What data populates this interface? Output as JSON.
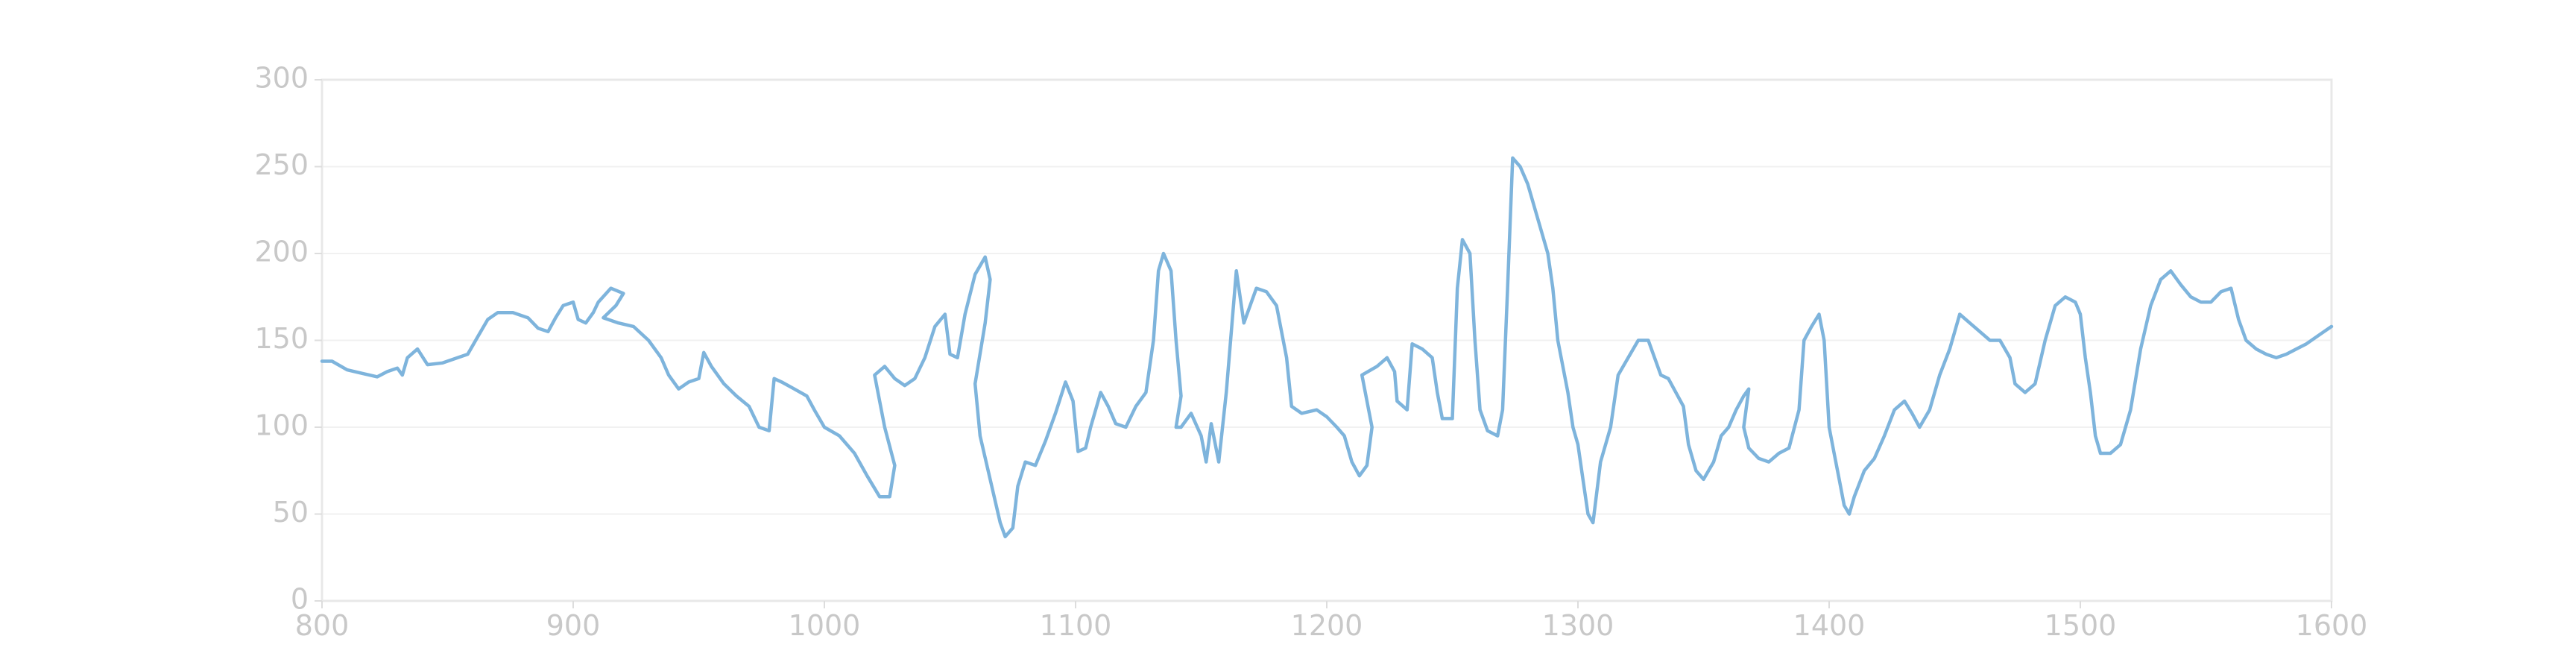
{
  "chart_data": {
    "type": "line",
    "title": "",
    "xlabel": "",
    "ylabel": "",
    "xlim": [
      800,
      1600
    ],
    "ylim": [
      0,
      300
    ],
    "x_ticks": [
      800,
      900,
      1000,
      1100,
      1200,
      1300,
      1400,
      1500,
      1600
    ],
    "y_ticks": [
      0,
      50,
      100,
      150,
      200,
      250,
      300
    ],
    "x_tick_labels": [
      "800",
      "900",
      "1000",
      "1100",
      "1200",
      "1300",
      "1400",
      "1500",
      "1600"
    ],
    "y_tick_labels": [
      "0",
      "50",
      "100",
      "150",
      "200",
      "250",
      "300"
    ],
    "grid": false,
    "legend": "none",
    "series": [
      {
        "color": "#7eb4dc",
        "points": [
          [
            800,
            138
          ],
          [
            804,
            138
          ],
          [
            810,
            133
          ],
          [
            816,
            131
          ],
          [
            822,
            129
          ],
          [
            826,
            132
          ],
          [
            830,
            134
          ],
          [
            832,
            130
          ],
          [
            834,
            140
          ],
          [
            838,
            145
          ],
          [
            842,
            136
          ],
          [
            848,
            137
          ],
          [
            854,
            140
          ],
          [
            858,
            142
          ],
          [
            862,
            152
          ],
          [
            866,
            162
          ],
          [
            870,
            166
          ],
          [
            876,
            166
          ],
          [
            882,
            163
          ],
          [
            886,
            157
          ],
          [
            890,
            155
          ],
          [
            893,
            163
          ],
          [
            896,
            170
          ],
          [
            900,
            172
          ],
          [
            902,
            162
          ],
          [
            905,
            160
          ],
          [
            908,
            166
          ],
          [
            910,
            172
          ],
          [
            915,
            180
          ],
          [
            920,
            177
          ],
          [
            917,
            170
          ],
          [
            912,
            163
          ],
          [
            918,
            160
          ],
          [
            924,
            158
          ],
          [
            930,
            150
          ],
          [
            935,
            140
          ],
          [
            938,
            130
          ],
          [
            942,
            122
          ],
          [
            946,
            126
          ],
          [
            950,
            128
          ],
          [
            952,
            143
          ],
          [
            955,
            135
          ],
          [
            960,
            125
          ],
          [
            965,
            118
          ],
          [
            970,
            112
          ],
          [
            974,
            100
          ],
          [
            978,
            98
          ],
          [
            980,
            128
          ],
          [
            983,
            126
          ],
          [
            988,
            122
          ],
          [
            993,
            118
          ],
          [
            996,
            110
          ],
          [
            1000,
            100
          ],
          [
            1006,
            95
          ],
          [
            1012,
            85
          ],
          [
            1017,
            72
          ],
          [
            1022,
            60
          ],
          [
            1026,
            60
          ],
          [
            1028,
            78
          ],
          [
            1024,
            100
          ],
          [
            1020,
            130
          ],
          [
            1024,
            135
          ],
          [
            1028,
            128
          ],
          [
            1032,
            124
          ],
          [
            1036,
            128
          ],
          [
            1040,
            140
          ],
          [
            1044,
            158
          ],
          [
            1048,
            165
          ],
          [
            1050,
            142
          ],
          [
            1053,
            140
          ],
          [
            1056,
            165
          ],
          [
            1060,
            188
          ],
          [
            1064,
            198
          ],
          [
            1066,
            185
          ],
          [
            1064,
            160
          ],
          [
            1060,
            125
          ],
          [
            1062,
            95
          ],
          [
            1066,
            70
          ],
          [
            1070,
            45
          ],
          [
            1072,
            37
          ],
          [
            1075,
            42
          ],
          [
            1077,
            66
          ],
          [
            1080,
            80
          ],
          [
            1084,
            78
          ],
          [
            1088,
            92
          ],
          [
            1092,
            108
          ],
          [
            1096,
            126
          ],
          [
            1099,
            115
          ],
          [
            1101,
            86
          ],
          [
            1104,
            88
          ],
          [
            1106,
            100
          ],
          [
            1110,
            120
          ],
          [
            1113,
            112
          ],
          [
            1116,
            102
          ],
          [
            1120,
            100
          ],
          [
            1124,
            112
          ],
          [
            1128,
            120
          ],
          [
            1131,
            150
          ],
          [
            1133,
            190
          ],
          [
            1135,
            200
          ],
          [
            1138,
            190
          ],
          [
            1140,
            150
          ],
          [
            1142,
            118
          ],
          [
            1140,
            100
          ],
          [
            1142,
            100
          ],
          [
            1146,
            108
          ],
          [
            1150,
            95
          ],
          [
            1152,
            80
          ],
          [
            1154,
            102
          ],
          [
            1157,
            80
          ],
          [
            1160,
            120
          ],
          [
            1164,
            190
          ],
          [
            1167,
            160
          ],
          [
            1172,
            180
          ],
          [
            1176,
            178
          ],
          [
            1180,
            170
          ],
          [
            1184,
            140
          ],
          [
            1186,
            112
          ],
          [
            1190,
            108
          ],
          [
            1196,
            110
          ],
          [
            1200,
            106
          ],
          [
            1204,
            100
          ],
          [
            1207,
            95
          ],
          [
            1210,
            80
          ],
          [
            1213,
            72
          ],
          [
            1216,
            78
          ],
          [
            1218,
            100
          ],
          [
            1214,
            130
          ],
          [
            1220,
            135
          ],
          [
            1224,
            140
          ],
          [
            1227,
            132
          ],
          [
            1228,
            115
          ],
          [
            1232,
            110
          ],
          [
            1234,
            148
          ],
          [
            1238,
            145
          ],
          [
            1242,
            140
          ],
          [
            1244,
            120
          ],
          [
            1246,
            105
          ],
          [
            1250,
            105
          ],
          [
            1252,
            180
          ],
          [
            1254,
            208
          ],
          [
            1257,
            200
          ],
          [
            1259,
            150
          ],
          [
            1261,
            110
          ],
          [
            1264,
            98
          ],
          [
            1268,
            95
          ],
          [
            1270,
            110
          ],
          [
            1272,
            180
          ],
          [
            1274,
            255
          ],
          [
            1277,
            250
          ],
          [
            1280,
            240
          ],
          [
            1284,
            220
          ],
          [
            1288,
            200
          ],
          [
            1290,
            180
          ],
          [
            1292,
            150
          ],
          [
            1296,
            120
          ],
          [
            1298,
            100
          ],
          [
            1300,
            90
          ],
          [
            1302,
            70
          ],
          [
            1304,
            50
          ],
          [
            1306,
            45
          ],
          [
            1309,
            80
          ],
          [
            1313,
            100
          ],
          [
            1316,
            130
          ],
          [
            1320,
            140
          ],
          [
            1324,
            150
          ],
          [
            1328,
            150
          ],
          [
            1330,
            142
          ],
          [
            1333,
            130
          ],
          [
            1336,
            128
          ],
          [
            1339,
            120
          ],
          [
            1342,
            112
          ],
          [
            1344,
            90
          ],
          [
            1347,
            75
          ],
          [
            1350,
            70
          ],
          [
            1354,
            80
          ],
          [
            1357,
            95
          ],
          [
            1360,
            100
          ],
          [
            1363,
            110
          ],
          [
            1366,
            118
          ],
          [
            1368,
            122
          ],
          [
            1366,
            100
          ],
          [
            1368,
            88
          ],
          [
            1372,
            82
          ],
          [
            1376,
            80
          ],
          [
            1380,
            85
          ],
          [
            1384,
            88
          ],
          [
            1388,
            110
          ],
          [
            1390,
            150
          ],
          [
            1393,
            158
          ],
          [
            1396,
            165
          ],
          [
            1398,
            150
          ],
          [
            1400,
            100
          ],
          [
            1402,
            85
          ],
          [
            1404,
            70
          ],
          [
            1406,
            55
          ],
          [
            1408,
            50
          ],
          [
            1410,
            60
          ],
          [
            1414,
            75
          ],
          [
            1418,
            82
          ],
          [
            1422,
            95
          ],
          [
            1426,
            110
          ],
          [
            1430,
            115
          ],
          [
            1433,
            108
          ],
          [
            1436,
            100
          ],
          [
            1440,
            110
          ],
          [
            1444,
            130
          ],
          [
            1448,
            145
          ],
          [
            1452,
            165
          ],
          [
            1456,
            160
          ],
          [
            1460,
            155
          ],
          [
            1464,
            150
          ],
          [
            1468,
            150
          ],
          [
            1472,
            140
          ],
          [
            1474,
            125
          ],
          [
            1478,
            120
          ],
          [
            1482,
            125
          ],
          [
            1486,
            150
          ],
          [
            1490,
            170
          ],
          [
            1494,
            175
          ],
          [
            1498,
            172
          ],
          [
            1500,
            165
          ],
          [
            1502,
            140
          ],
          [
            1504,
            120
          ],
          [
            1506,
            95
          ],
          [
            1508,
            85
          ],
          [
            1512,
            85
          ],
          [
            1516,
            90
          ],
          [
            1520,
            110
          ],
          [
            1524,
            145
          ],
          [
            1528,
            170
          ],
          [
            1532,
            185
          ],
          [
            1536,
            190
          ],
          [
            1540,
            182
          ],
          [
            1544,
            175
          ],
          [
            1548,
            172
          ],
          [
            1552,
            172
          ],
          [
            1556,
            178
          ],
          [
            1560,
            180
          ],
          [
            1563,
            162
          ],
          [
            1566,
            150
          ],
          [
            1570,
            145
          ],
          [
            1574,
            142
          ],
          [
            1578,
            140
          ],
          [
            1582,
            142
          ],
          [
            1586,
            145
          ],
          [
            1590,
            148
          ],
          [
            1594,
            152
          ],
          [
            1597,
            155
          ],
          [
            1600,
            158
          ]
        ]
      }
    ]
  }
}
